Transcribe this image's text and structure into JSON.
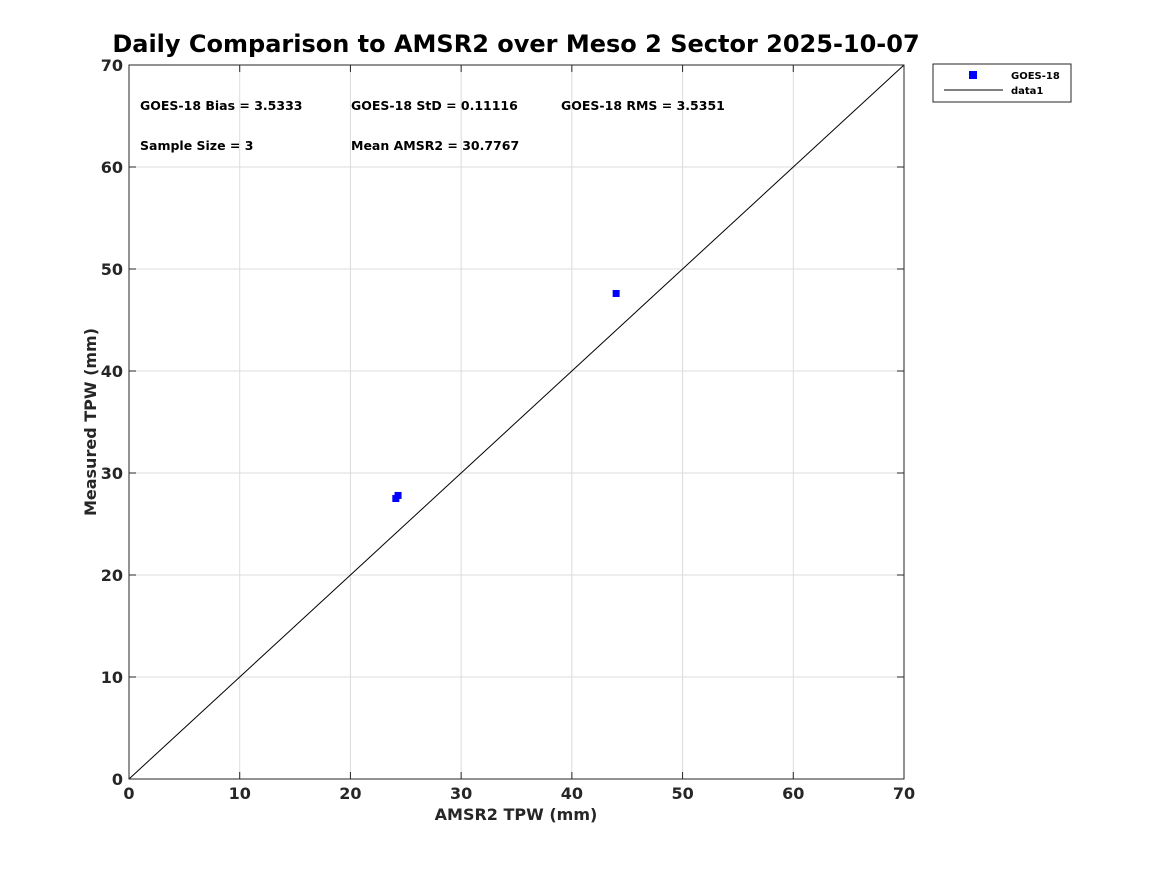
{
  "chart_data": {
    "type": "scatter",
    "title": "Daily Comparison to AMSR2 over Meso 2 Sector 2025-10-07",
    "xlabel": "AMSR2 TPW (mm)",
    "ylabel": "Measured TPW (mm)",
    "xlim": [
      0,
      70
    ],
    "ylim": [
      0,
      70
    ],
    "xticks": [
      0,
      10,
      20,
      30,
      40,
      50,
      60,
      70
    ],
    "yticks": [
      0,
      10,
      20,
      30,
      40,
      50,
      60,
      70
    ],
    "grid": true,
    "legend_position": "outside-top-right",
    "series": [
      {
        "name": "GOES-18",
        "kind": "scatter",
        "marker": "square",
        "color": "#0000ff",
        "points": [
          {
            "x": 24.1,
            "y": 27.5
          },
          {
            "x": 24.3,
            "y": 27.8
          },
          {
            "x": 44.0,
            "y": 47.6
          }
        ]
      },
      {
        "name": "data1",
        "kind": "line",
        "color": "#000000",
        "points": [
          {
            "x": 0,
            "y": 0
          },
          {
            "x": 70,
            "y": 70
          }
        ]
      }
    ],
    "annotations": [
      "GOES-18 Bias = 3.5333",
      "GOES-18 StD = 0.11116",
      "GOES-18 RMS = 3.5351",
      "Sample Size = 3",
      "Mean AMSR2 = 30.7767"
    ]
  }
}
